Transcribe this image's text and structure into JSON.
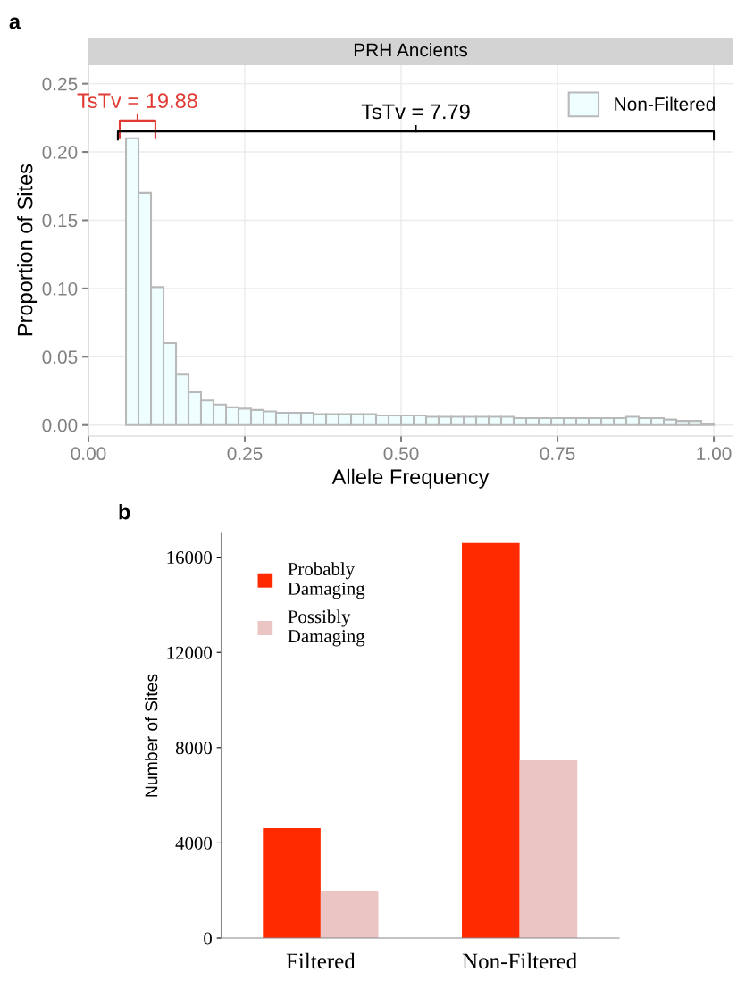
{
  "chart_data": [
    {
      "type": "histogram",
      "title": "PRH Ancients",
      "xlabel": "Allele Frequency",
      "ylabel": "Proportion of Sites",
      "bins": [
        0.06,
        0.08,
        0.1,
        0.12,
        0.14,
        0.16,
        0.18,
        0.2,
        0.22,
        0.24,
        0.26,
        0.28,
        0.3,
        0.32,
        0.34,
        0.36,
        0.38,
        0.4,
        0.42,
        0.44,
        0.46,
        0.48,
        0.5,
        0.52,
        0.54,
        0.56,
        0.58,
        0.6,
        0.62,
        0.64,
        0.66,
        0.68,
        0.7,
        0.72,
        0.74,
        0.76,
        0.78,
        0.8,
        0.82,
        0.84,
        0.86,
        0.88,
        0.9,
        0.92,
        0.94,
        0.96,
        0.98,
        1.0
      ],
      "series": [
        {
          "name": "Non-Filtered",
          "color": "#effefe",
          "values": [
            0.21,
            0.17,
            0.101,
            0.06,
            0.037,
            0.024,
            0.018,
            0.015,
            0.013,
            0.012,
            0.011,
            0.01,
            0.009,
            0.009,
            0.009,
            0.008,
            0.008,
            0.008,
            0.008,
            0.008,
            0.007,
            0.007,
            0.007,
            0.007,
            0.006,
            0.006,
            0.006,
            0.006,
            0.006,
            0.006,
            0.006,
            0.005,
            0.005,
            0.005,
            0.005,
            0.005,
            0.005,
            0.005,
            0.005,
            0.005,
            0.006,
            0.005,
            0.005,
            0.004,
            0.003,
            0.003,
            0.001
          ]
        }
      ],
      "xlim": [
        0.0,
        1.03
      ],
      "ylim": [
        -0.008,
        0.264
      ],
      "xticks": [
        {
          "value": 0,
          "label": "0.00"
        },
        {
          "value": 0.25,
          "label": "0.25"
        },
        {
          "value": 0.5,
          "label": "0.50"
        },
        {
          "value": 0.75,
          "label": "0.75"
        },
        {
          "value": 1,
          "label": "1.00"
        }
      ],
      "yticks": [
        {
          "value": 0,
          "label": "0.00"
        },
        {
          "value": 0.05,
          "label": "0.05"
        },
        {
          "value": 0.1,
          "label": "0.10"
        },
        {
          "value": 0.15,
          "label": "0.15"
        },
        {
          "value": 0.2,
          "label": "0.20"
        },
        {
          "value": 0.25,
          "label": "0.25"
        }
      ],
      "grid": true,
      "legend": "top right",
      "annotations": [
        "a",
        "TsTv = 19.88",
        "TsTv = 7.79"
      ]
    },
    {
      "type": "bar",
      "ylabel": "Number of Sites",
      "categories": [
        "Filtered",
        "Non-Filtered"
      ],
      "series": [
        {
          "name": "Probably\nDamaging",
          "color": "#ff2a00",
          "values": [
            4620,
            16600
          ]
        },
        {
          "name": "Possibly\nDamaging",
          "color": "#ebc5c3",
          "values": [
            1990,
            7470
          ]
        }
      ],
      "ylim": [
        0,
        17000
      ],
      "yticks": [
        0,
        4000,
        8000,
        12000,
        16000
      ],
      "grid": false,
      "legend": "top left",
      "annotations": [
        "b"
      ]
    }
  ]
}
